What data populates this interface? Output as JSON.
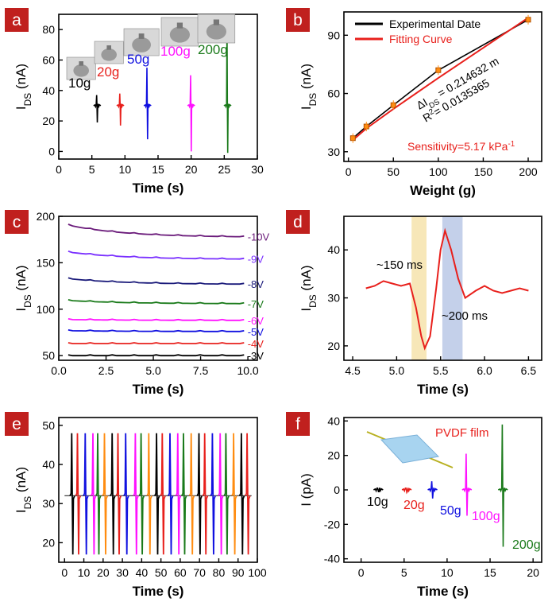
{
  "colors": {
    "panel_badge": "#c0201e",
    "black": "#000000",
    "red": "#e8201c",
    "blue": "#1010e0",
    "magenta": "#ff10ff",
    "green": "#1a7a1a",
    "purple": "#6a1a7a",
    "violet": "#7a30ff",
    "navy": "#1a1a7a",
    "orange": "#ff8c10",
    "highlight_yellow": "#f7e7b8",
    "highlight_blue": "#c4d0ea",
    "film_fill": "#a8d4f0",
    "wire": "#b8b020"
  },
  "chart_data": [
    {
      "panel": "a",
      "type": "line",
      "xlabel": "Time (s)",
      "ylabel_main": "I",
      "ylabel_sub": "DS",
      "ylabel_unit": " (nA)",
      "xlim": [
        0,
        30
      ],
      "ylim": [
        -5,
        90
      ],
      "xticks": [
        0,
        5,
        10,
        15,
        20,
        25,
        30
      ],
      "yticks": [
        0,
        20,
        40,
        60,
        80
      ],
      "baseline": 30,
      "series": [
        {
          "name": "10g",
          "color": "black",
          "center": 5.8,
          "max": 37,
          "min": 19
        },
        {
          "name": "20g",
          "color": "red",
          "center": 9.3,
          "max": 38,
          "min": 17
        },
        {
          "name": "50g",
          "color": "blue",
          "center": 13.4,
          "max": 55,
          "min": 8
        },
        {
          "name": "100g",
          "color": "magenta",
          "center": 20.0,
          "max": 50,
          "min": 0
        },
        {
          "name": "200g",
          "color": "green",
          "center": 25.5,
          "max": 86,
          "min": -1
        }
      ],
      "labels": [
        "10g",
        "20g",
        "50g",
        "100g",
        "200g"
      ]
    },
    {
      "panel": "b",
      "type": "scatter",
      "xlabel": "Weight (g)",
      "ylabel_main": "I",
      "ylabel_sub": "DS",
      "ylabel_unit": " (nA)",
      "xlim": [
        -5,
        215
      ],
      "ylim": [
        25,
        102
      ],
      "xticks": [
        0,
        50,
        100,
        150,
        200
      ],
      "yticks": [
        30,
        60,
        90
      ],
      "legend": [
        "Experimental  Date",
        "Fitting Curve"
      ],
      "x": [
        5,
        20,
        50,
        100,
        200
      ],
      "y": [
        37,
        43,
        54,
        72,
        98
      ],
      "fit_y": [
        36,
        42,
        52,
        68,
        99
      ],
      "eq_line1_a": "ΔI",
      "eq_line1_sub": "DS",
      "eq_line1_b": " = 0.214632 m",
      "eq_line2_a": "R",
      "eq_line2_sup": "2",
      "eq_line2_b": "= 0.0135365",
      "sensitivity": "Sensitivity=5.17  kPa",
      "sensitivity_sup": "-1"
    },
    {
      "panel": "c",
      "type": "line",
      "xlabel": "Time (s)",
      "ylabel_main": "I",
      "ylabel_sub": "DS",
      "ylabel_unit": " (nA)",
      "xlim": [
        0,
        10.5
      ],
      "ylim": [
        45,
        200
      ],
      "xticks": [
        "0.0",
        "2.5",
        "5.0",
        "7.5",
        "10.0"
      ],
      "xtick_vals": [
        0,
        2.5,
        5,
        7.5,
        10
      ],
      "yticks": [
        50,
        100,
        150,
        200
      ],
      "series": [
        {
          "name": "-10V",
          "color": "purple",
          "start": 193,
          "end": 178
        },
        {
          "name": "-9V",
          "color": "violet",
          "start": 163,
          "end": 154
        },
        {
          "name": "-8V",
          "color": "navy",
          "start": 134,
          "end": 127
        },
        {
          "name": "-7V",
          "color": "green",
          "start": 110,
          "end": 106
        },
        {
          "name": "-6V",
          "color": "magenta",
          "start": 89,
          "end": 88
        },
        {
          "name": "-5V",
          "color": "blue",
          "start": 77,
          "end": 76
        },
        {
          "name": "-4V",
          "color": "red",
          "start": 63,
          "end": 63
        },
        {
          "name": "-3V",
          "color": "black",
          "start": 50,
          "end": 50
        }
      ]
    },
    {
      "panel": "d",
      "type": "line",
      "xlabel": "Time (s)",
      "ylabel_main": "I",
      "ylabel_sub": "DS",
      "ylabel_unit": " (nA)",
      "xlim": [
        4.4,
        6.65
      ],
      "ylim": [
        17,
        47
      ],
      "xticks": [
        "4.5",
        "5.0",
        "5.5",
        "6.0",
        "6.5"
      ],
      "xtick_vals": [
        4.5,
        5.0,
        5.5,
        6.0,
        6.5
      ],
      "yticks": [
        20,
        30,
        40
      ],
      "x": [
        4.65,
        4.75,
        4.85,
        4.95,
        5.05,
        5.15,
        5.22,
        5.28,
        5.32,
        5.38,
        5.45,
        5.5,
        5.55,
        5.62,
        5.7,
        5.78,
        5.9,
        6.0,
        6.1,
        6.2,
        6.3,
        6.4,
        6.5
      ],
      "y": [
        32,
        32.5,
        33.5,
        33,
        32.5,
        33,
        28,
        22,
        19.5,
        22,
        32,
        40,
        44,
        40,
        34,
        30,
        31.5,
        32.5,
        31.5,
        31,
        31.5,
        32,
        31.5
      ],
      "bands": [
        {
          "from": 5.17,
          "to": 5.34,
          "color": "highlight_yellow"
        },
        {
          "from": 5.52,
          "to": 5.75,
          "color": "highlight_blue"
        }
      ],
      "annotations": [
        "~150 ms",
        "~200 ms"
      ]
    },
    {
      "panel": "e",
      "type": "line",
      "xlabel": "Time (s)",
      "ylabel_main": "I",
      "ylabel_sub": "DS",
      "ylabel_unit": " (nA)",
      "xlim": [
        -3,
        100
      ],
      "ylim": [
        15,
        52
      ],
      "xticks": [
        0,
        10,
        20,
        30,
        40,
        50,
        60,
        70,
        80,
        90,
        100
      ],
      "yticks": [
        20,
        30,
        40,
        50
      ],
      "baseline": 32,
      "colors_cycle": [
        "black",
        "red",
        "blue",
        "magenta",
        "green",
        "orange"
      ],
      "spike_times": [
        4,
        7,
        11,
        15,
        17.5,
        21,
        25,
        28,
        32,
        37,
        40,
        44,
        48,
        51,
        55,
        59,
        62,
        66,
        70,
        73,
        77,
        81,
        84,
        88,
        92,
        95
      ],
      "spike_max": 48,
      "spike_min": 17
    },
    {
      "panel": "f",
      "type": "line",
      "xlabel": "Time (s)",
      "ylabel": "I (pA)",
      "xlim": [
        -2,
        21
      ],
      "ylim": [
        -42,
        42
      ],
      "xticks": [
        0,
        5,
        10,
        15,
        20
      ],
      "yticks": [
        -40,
        -20,
        0,
        20,
        40
      ],
      "inset_label": "PVDF film",
      "series": [
        {
          "name": "10g",
          "color": "black",
          "center": 2.0,
          "max": 1,
          "min": -1
        },
        {
          "name": "20g",
          "color": "red",
          "center": 5.3,
          "max": 1,
          "min": -1.5
        },
        {
          "name": "50g",
          "color": "blue",
          "center": 8.3,
          "max": 5,
          "min": -5
        },
        {
          "name": "100g",
          "color": "magenta",
          "center": 12.3,
          "max": 21,
          "min": -15
        },
        {
          "name": "200g",
          "color": "green",
          "center": 16.5,
          "max": 38,
          "min": -33
        }
      ],
      "labels": [
        "10g",
        "20g",
        "50g",
        "100g",
        "200g"
      ]
    }
  ],
  "panel_labels": [
    "a",
    "b",
    "c",
    "d",
    "e",
    "f"
  ]
}
